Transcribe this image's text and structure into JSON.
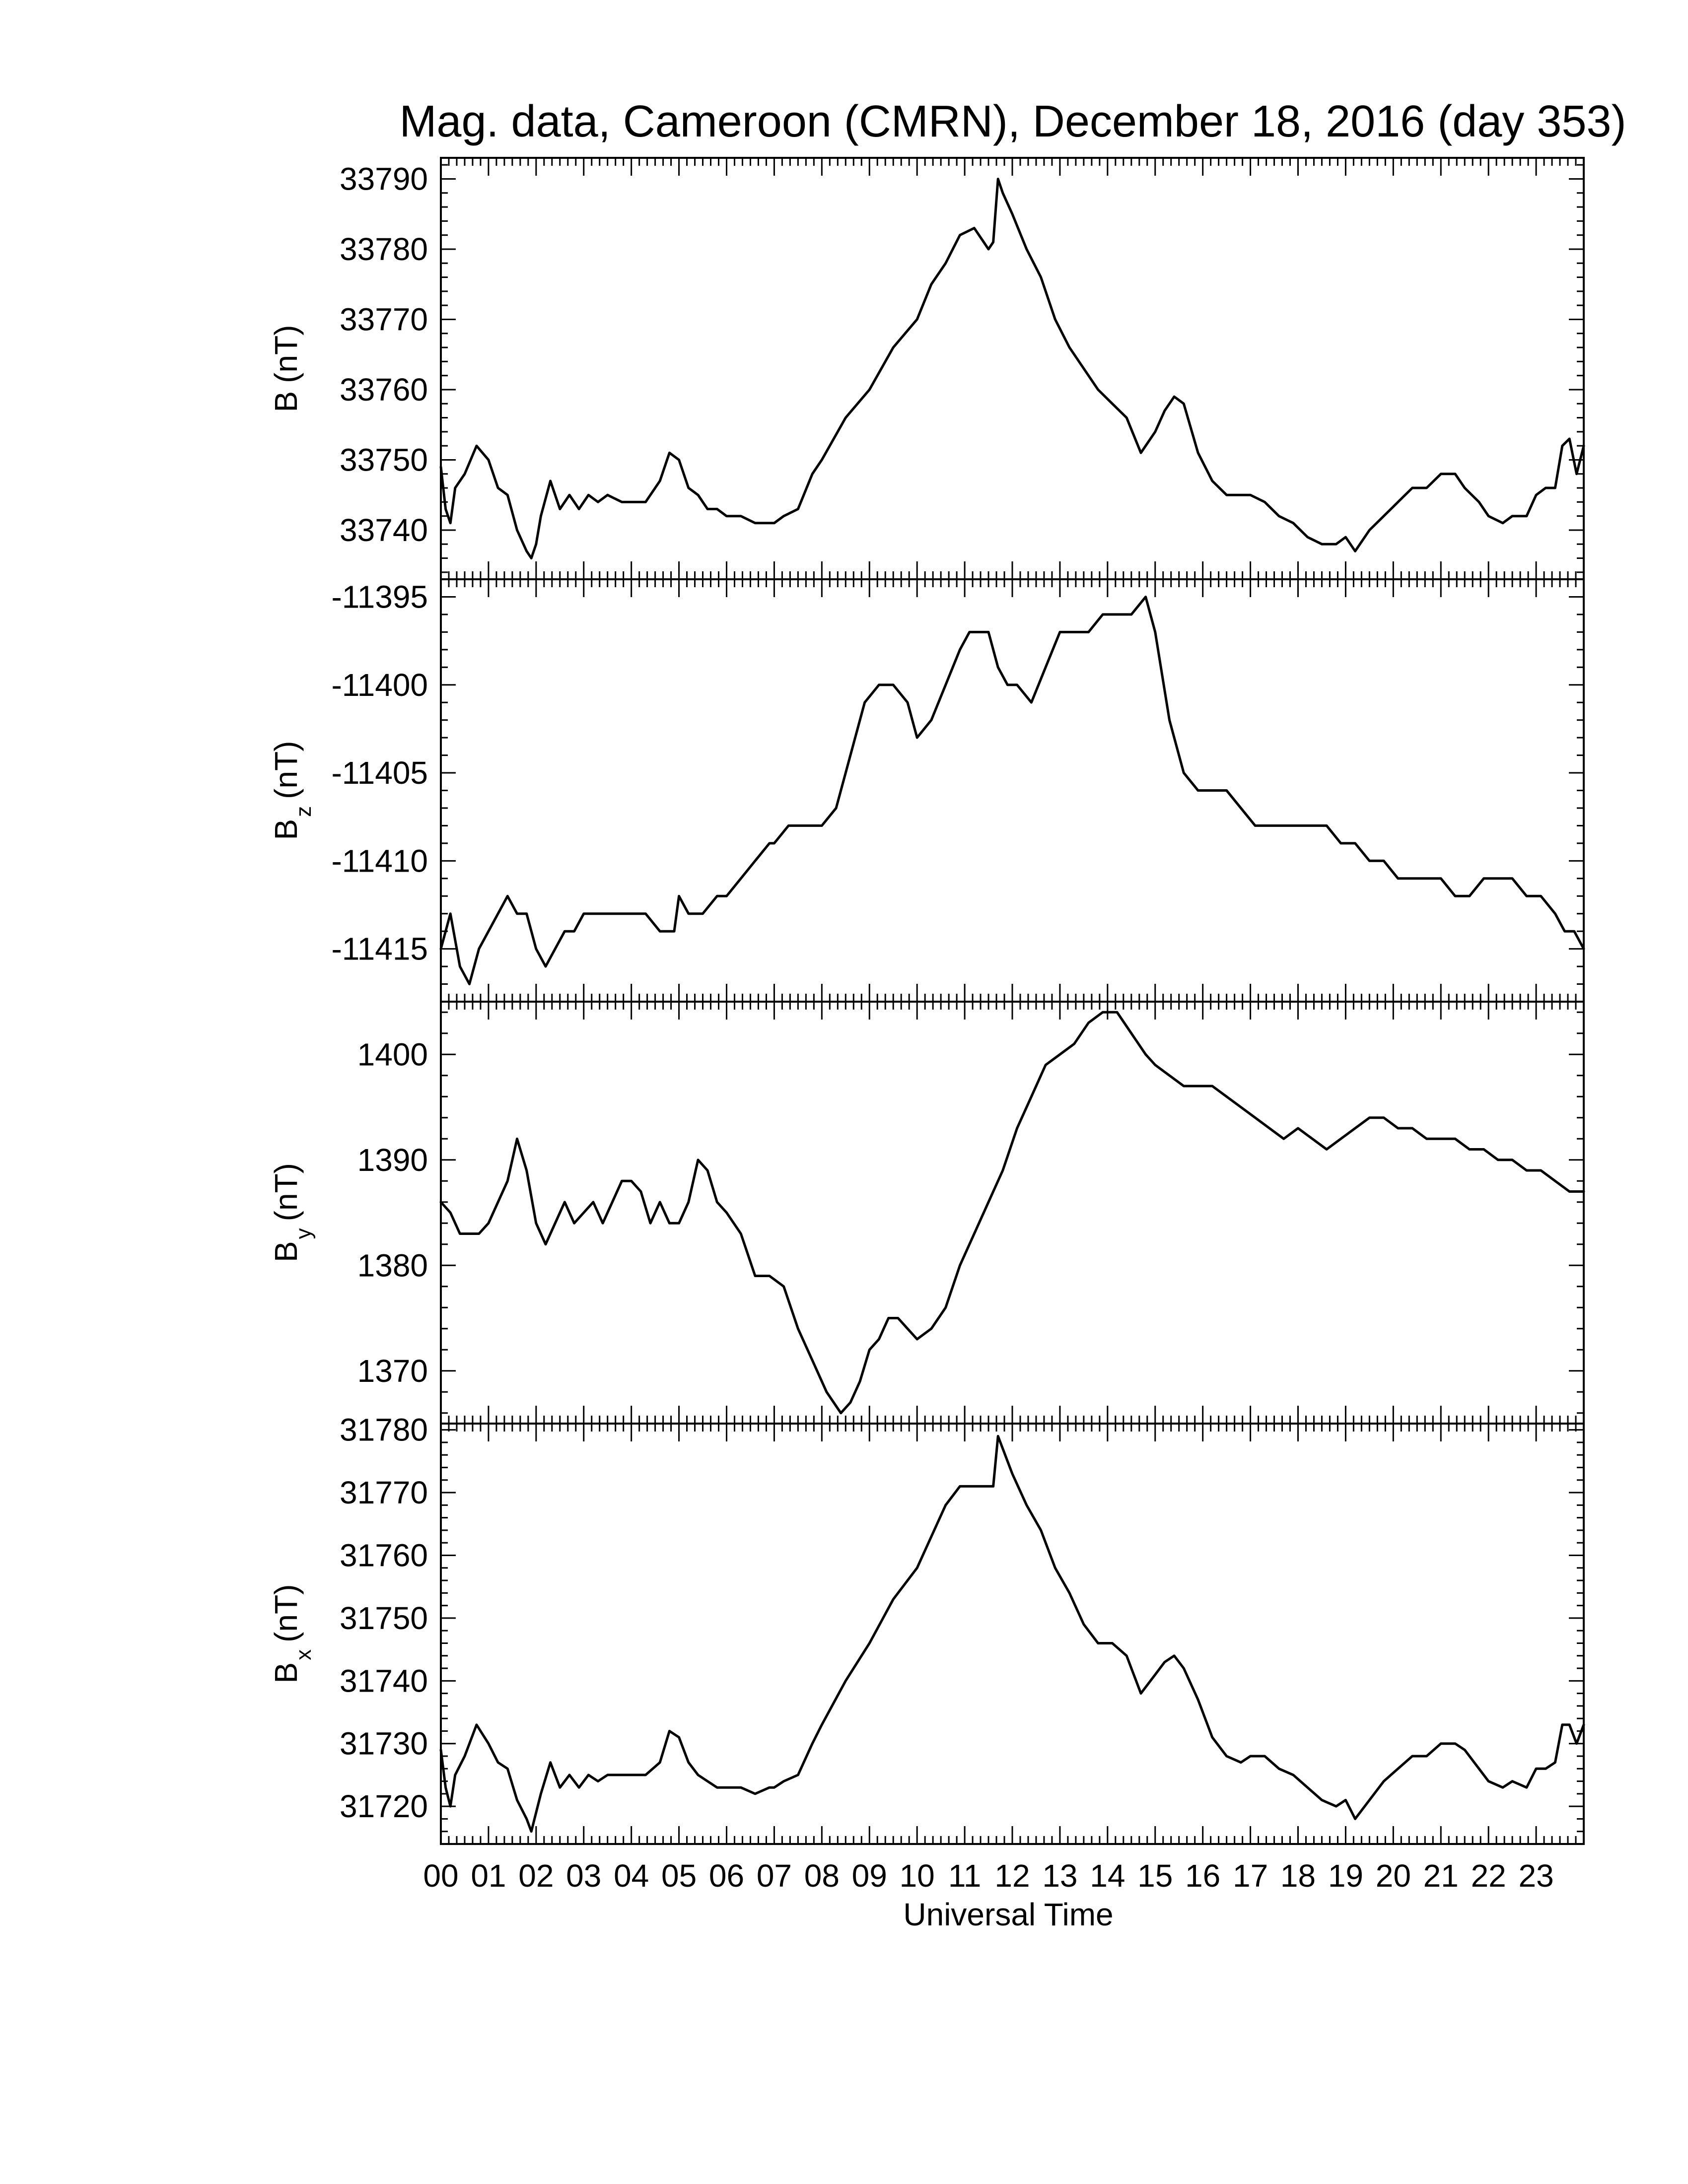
{
  "title": "Mag. data, Cameroon (CMRN), December 18, 2016 (day 353)",
  "chart_data": [
    {
      "type": "line",
      "title": "Mag. data, Cameroon (CMRN), December 18, 2016 (day 353)",
      "ylabel": "B (nT)",
      "ylabel_main": "B",
      "ylabel_sub": "",
      "ylabel_unit": "(nT)",
      "xlabel": "",
      "xlim": [
        0,
        24
      ],
      "ylim": [
        33733,
        33793
      ],
      "yticks": [
        33740,
        33750,
        33760,
        33770,
        33780,
        33790
      ],
      "ytick_labels": [
        "33740",
        "33750",
        "33760",
        "33770",
        "33780",
        "33790"
      ],
      "grid": false,
      "x": [
        0.0,
        0.1,
        0.2,
        0.3,
        0.5,
        0.75,
        1.0,
        1.2,
        1.4,
        1.6,
        1.8,
        1.9,
        2.0,
        2.1,
        2.3,
        2.5,
        2.7,
        2.9,
        3.1,
        3.3,
        3.5,
        3.8,
        4.0,
        4.3,
        4.6,
        4.8,
        5.0,
        5.2,
        5.4,
        5.6,
        5.8,
        6.0,
        6.3,
        6.6,
        6.9,
        7.0,
        7.2,
        7.5,
        7.8,
        8.0,
        8.5,
        9.0,
        9.5,
        10.0,
        10.3,
        10.6,
        10.9,
        11.2,
        11.4,
        11.5,
        11.6,
        11.7,
        11.8,
        12.0,
        12.3,
        12.6,
        12.9,
        13.2,
        13.5,
        13.8,
        14.1,
        14.4,
        14.7,
        15.0,
        15.2,
        15.4,
        15.6,
        15.9,
        16.2,
        16.5,
        16.8,
        17.0,
        17.3,
        17.6,
        17.9,
        18.2,
        18.5,
        18.8,
        19.0,
        19.2,
        19.5,
        19.8,
        20.1,
        20.4,
        20.7,
        21.0,
        21.3,
        21.5,
        21.8,
        22.0,
        22.3,
        22.5,
        22.8,
        23.0,
        23.2,
        23.4,
        23.55,
        23.7,
        23.85,
        24.0
      ],
      "values": [
        33749,
        33743,
        33741,
        33746,
        33748,
        33752,
        33750,
        33746,
        33745,
        33740,
        33737,
        33736,
        33738,
        33742,
        33747,
        33743,
        33745,
        33743,
        33745,
        33744,
        33745,
        33744,
        33744,
        33744,
        33747,
        33751,
        33750,
        33746,
        33745,
        33743,
        33743,
        33742,
        33742,
        33741,
        33741,
        33741,
        33742,
        33743,
        33748,
        33750,
        33756,
        33760,
        33766,
        33770,
        33775,
        33778,
        33782,
        33783,
        33781,
        33780,
        33781,
        33790,
        33788,
        33785,
        33780,
        33776,
        33770,
        33766,
        33763,
        33760,
        33758,
        33756,
        33751,
        33754,
        33757,
        33759,
        33758,
        33751,
        33747,
        33745,
        33745,
        33745,
        33744,
        33742,
        33741,
        33739,
        33738,
        33738,
        33739,
        33737,
        33740,
        33742,
        33744,
        33746,
        33746,
        33748,
        33748,
        33746,
        33744,
        33742,
        33741,
        33742,
        33742,
        33745,
        33746,
        33746,
        33752,
        33753,
        33748,
        33752
      ]
    },
    {
      "type": "line",
      "ylabel": "B_z (nT)",
      "ylabel_main": "B",
      "ylabel_sub": "z",
      "ylabel_unit": "(nT)",
      "xlabel": "",
      "xlim": [
        0,
        24
      ],
      "ylim": [
        -11418,
        -11394
      ],
      "yticks": [
        -11415,
        -11410,
        -11405,
        -11400,
        -11395
      ],
      "ytick_labels": [
        "-11415",
        "-11410",
        "-11405",
        "-11400",
        "-11395"
      ],
      "grid": false,
      "x": [
        0.0,
        0.2,
        0.4,
        0.6,
        0.8,
        1.0,
        1.2,
        1.4,
        1.6,
        1.8,
        2.0,
        2.2,
        2.4,
        2.6,
        2.8,
        3.0,
        3.2,
        3.5,
        3.8,
        4.0,
        4.3,
        4.6,
        4.9,
        5.0,
        5.2,
        5.5,
        5.8,
        6.0,
        6.3,
        6.6,
        6.9,
        7.0,
        7.3,
        7.6,
        7.9,
        8.0,
        8.3,
        8.6,
        8.9,
        9.2,
        9.5,
        9.8,
        10.0,
        10.3,
        10.6,
        10.9,
        11.1,
        11.3,
        11.5,
        11.7,
        11.9,
        12.1,
        12.4,
        12.7,
        13.0,
        13.3,
        13.6,
        13.9,
        14.2,
        14.5,
        14.8,
        15.0,
        15.3,
        15.6,
        15.9,
        16.2,
        16.5,
        16.8,
        17.1,
        17.4,
        17.7,
        18.0,
        18.3,
        18.6,
        18.9,
        19.2,
        19.5,
        19.8,
        20.1,
        20.4,
        20.7,
        21.0,
        21.3,
        21.6,
        21.9,
        22.2,
        22.5,
        22.8,
        23.1,
        23.4,
        23.6,
        23.8,
        24.0
      ],
      "values": [
        -11415,
        -11413,
        -11416,
        -11417,
        -11415,
        -11414,
        -11413,
        -11412,
        -11413,
        -11413,
        -11415,
        -11416,
        -11415,
        -11414,
        -11414,
        -11413,
        -11413,
        -11413,
        -11413,
        -11413,
        -11413,
        -11414,
        -11414,
        -11412,
        -11413,
        -11413,
        -11412,
        -11412,
        -11411,
        -11410,
        -11409,
        -11409,
        -11408,
        -11408,
        -11408,
        -11408,
        -11407,
        -11404,
        -11401,
        -11400,
        -11400,
        -11401,
        -11403,
        -11402,
        -11400,
        -11398,
        -11397,
        -11397,
        -11397,
        -11399,
        -11400,
        -11400,
        -11401,
        -11399,
        -11397,
        -11397,
        -11397,
        -11396,
        -11396,
        -11396,
        -11395,
        -11397,
        -11402,
        -11405,
        -11406,
        -11406,
        -11406,
        -11407,
        -11408,
        -11408,
        -11408,
        -11408,
        -11408,
        -11408,
        -11409,
        -11409,
        -11410,
        -11410,
        -11411,
        -11411,
        -11411,
        -11411,
        -11412,
        -11412,
        -11411,
        -11411,
        -11411,
        -11412,
        -11412,
        -11413,
        -11414,
        -11414,
        -11415
      ]
    },
    {
      "type": "line",
      "ylabel": "B_y (nT)",
      "ylabel_main": "B",
      "ylabel_sub": "y",
      "ylabel_unit": "(nT)",
      "xlabel": "",
      "xlim": [
        0,
        24
      ],
      "ylim": [
        1365,
        1405
      ],
      "yticks": [
        1370,
        1380,
        1390,
        1400
      ],
      "ytick_labels": [
        "1370",
        "1380",
        "1390",
        "1400"
      ],
      "grid": false,
      "x": [
        0.0,
        0.2,
        0.4,
        0.6,
        0.8,
        1.0,
        1.2,
        1.4,
        1.6,
        1.8,
        2.0,
        2.2,
        2.4,
        2.6,
        2.8,
        3.0,
        3.2,
        3.4,
        3.6,
        3.8,
        4.0,
        4.2,
        4.4,
        4.6,
        4.8,
        5.0,
        5.2,
        5.4,
        5.6,
        5.8,
        6.0,
        6.3,
        6.6,
        6.9,
        7.2,
        7.5,
        7.8,
        8.1,
        8.4,
        8.6,
        8.8,
        9.0,
        9.2,
        9.4,
        9.6,
        9.8,
        10.0,
        10.3,
        10.6,
        10.9,
        11.2,
        11.5,
        11.8,
        12.1,
        12.4,
        12.7,
        13.0,
        13.3,
        13.6,
        13.9,
        14.2,
        14.5,
        14.8,
        15.0,
        15.3,
        15.6,
        15.9,
        16.2,
        16.5,
        16.8,
        17.1,
        17.4,
        17.7,
        18.0,
        18.3,
        18.6,
        18.9,
        19.2,
        19.5,
        19.8,
        20.1,
        20.4,
        20.7,
        21.0,
        21.3,
        21.6,
        21.9,
        22.2,
        22.5,
        22.8,
        23.1,
        23.4,
        23.7,
        24.0
      ],
      "values": [
        1386,
        1385,
        1383,
        1383,
        1383,
        1384,
        1386,
        1388,
        1392,
        1389,
        1384,
        1382,
        1384,
        1386,
        1384,
        1385,
        1386,
        1384,
        1386,
        1388,
        1388,
        1387,
        1384,
        1386,
        1384,
        1384,
        1386,
        1390,
        1389,
        1386,
        1385,
        1383,
        1379,
        1379,
        1378,
        1374,
        1371,
        1368,
        1366,
        1367,
        1369,
        1372,
        1373,
        1375,
        1375,
        1374,
        1373,
        1374,
        1376,
        1380,
        1383,
        1386,
        1389,
        1393,
        1396,
        1399,
        1400,
        1401,
        1403,
        1404,
        1404,
        1402,
        1400,
        1399,
        1398,
        1397,
        1397,
        1397,
        1396,
        1395,
        1394,
        1393,
        1392,
        1393,
        1392,
        1391,
        1392,
        1393,
        1394,
        1394,
        1393,
        1393,
        1392,
        1392,
        1392,
        1391,
        1391,
        1390,
        1390,
        1389,
        1389,
        1388,
        1387,
        1387
      ]
    },
    {
      "type": "line",
      "ylabel": "B_x (nT)",
      "ylabel_main": "B",
      "ylabel_sub": "x",
      "ylabel_unit": "(nT)",
      "xlabel": "Universal Time",
      "xlim": [
        0,
        24
      ],
      "ylim": [
        31714,
        31781
      ],
      "yticks": [
        31720,
        31730,
        31740,
        31750,
        31760,
        31770,
        31780
      ],
      "ytick_labels": [
        "31720",
        "31730",
        "31740",
        "31750",
        "31760",
        "31770",
        "31780"
      ],
      "xticks": [
        0,
        1,
        2,
        3,
        4,
        5,
        6,
        7,
        8,
        9,
        10,
        11,
        12,
        13,
        14,
        15,
        16,
        17,
        18,
        19,
        20,
        21,
        22,
        23
      ],
      "xtick_labels": [
        "00",
        "01",
        "02",
        "03",
        "04",
        "05",
        "06",
        "07",
        "08",
        "09",
        "10",
        "11",
        "12",
        "13",
        "14",
        "15",
        "16",
        "17",
        "18",
        "19",
        "20",
        "21",
        "22",
        "23"
      ],
      "grid": false,
      "x": [
        0.0,
        0.1,
        0.2,
        0.3,
        0.5,
        0.75,
        1.0,
        1.2,
        1.4,
        1.6,
        1.8,
        1.9,
        2.0,
        2.1,
        2.3,
        2.5,
        2.7,
        2.9,
        3.1,
        3.3,
        3.5,
        3.8,
        4.0,
        4.3,
        4.6,
        4.8,
        5.0,
        5.2,
        5.4,
        5.6,
        5.8,
        6.0,
        6.3,
        6.6,
        6.9,
        7.0,
        7.2,
        7.5,
        7.8,
        8.0,
        8.5,
        9.0,
        9.5,
        10.0,
        10.3,
        10.6,
        10.9,
        11.2,
        11.4,
        11.5,
        11.6,
        11.7,
        11.8,
        12.0,
        12.3,
        12.6,
        12.9,
        13.2,
        13.5,
        13.8,
        14.1,
        14.4,
        14.7,
        15.0,
        15.2,
        15.4,
        15.6,
        15.9,
        16.2,
        16.5,
        16.8,
        17.0,
        17.3,
        17.6,
        17.9,
        18.2,
        18.5,
        18.8,
        19.0,
        19.2,
        19.5,
        19.8,
        20.1,
        20.4,
        20.7,
        21.0,
        21.3,
        21.5,
        21.8,
        22.0,
        22.3,
        22.5,
        22.8,
        23.0,
        23.2,
        23.4,
        23.55,
        23.7,
        23.85,
        24.0
      ],
      "values": [
        31729,
        31723,
        31720,
        31725,
        31728,
        31733,
        31730,
        31727,
        31726,
        31721,
        31718,
        31716,
        31719,
        31722,
        31727,
        31723,
        31725,
        31723,
        31725,
        31724,
        31725,
        31725,
        31725,
        31725,
        31727,
        31732,
        31731,
        31727,
        31725,
        31724,
        31723,
        31723,
        31723,
        31722,
        31723,
        31723,
        31724,
        31725,
        31730,
        31733,
        31740,
        31746,
        31753,
        31758,
        31763,
        31768,
        31771,
        31771,
        31771,
        31771,
        31771,
        31779,
        31777,
        31773,
        31768,
        31764,
        31758,
        31754,
        31749,
        31746,
        31746,
        31744,
        31738,
        31741,
        31743,
        31744,
        31742,
        31737,
        31731,
        31728,
        31727,
        31728,
        31728,
        31726,
        31725,
        31723,
        31721,
        31720,
        31721,
        31718,
        31721,
        31724,
        31726,
        31728,
        31728,
        31730,
        31730,
        31729,
        31726,
        31724,
        31723,
        31724,
        31723,
        31726,
        31726,
        31727,
        31733,
        31733,
        31730,
        31733
      ]
    }
  ]
}
